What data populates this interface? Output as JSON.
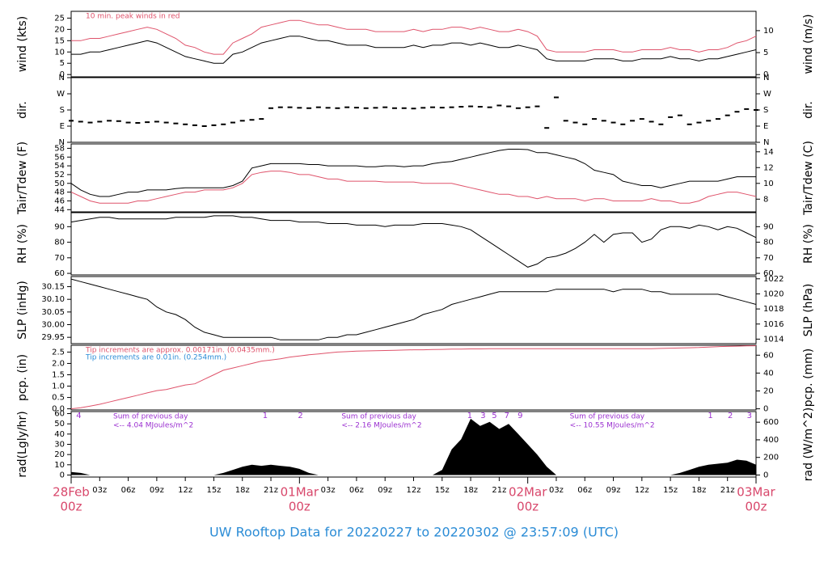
{
  "chart_data": [
    {
      "type": "line",
      "y_label": "wind (kts)",
      "y2_label": "wind (m/s)",
      "annotation": "10 min. peak winds in red",
      "ylim": [
        -1,
        28
      ],
      "yticks": [
        0,
        5,
        10,
        15,
        20,
        25
      ],
      "y2lim": [
        -0.51,
        14.4
      ],
      "y2ticks": [
        0,
        5,
        10
      ],
      "series": [
        {
          "color": "#000000",
          "values": [
            9,
            9,
            10,
            10,
            11,
            12,
            13,
            14,
            15,
            14,
            12,
            10,
            8,
            7,
            6,
            5,
            5,
            9,
            10,
            12,
            14,
            15,
            16,
            17,
            17,
            16,
            15,
            15,
            14,
            13,
            13,
            13,
            12,
            12,
            12,
            12,
            13,
            12,
            13,
            13,
            14,
            14,
            13,
            14,
            13,
            12,
            12,
            13,
            12,
            11,
            7,
            6,
            6,
            6,
            6,
            7,
            7,
            7,
            6,
            6,
            7,
            7,
            7,
            8,
            7,
            7,
            6,
            7,
            7,
            8,
            9,
            10,
            11
          ]
        },
        {
          "color": "#df536b",
          "values": [
            15,
            15,
            16,
            16,
            17,
            18,
            19,
            20,
            21,
            20,
            18,
            16,
            13,
            12,
            10,
            9,
            9,
            14,
            16,
            18,
            21,
            22,
            23,
            24,
            24,
            23,
            22,
            22,
            21,
            20,
            20,
            20,
            19,
            19,
            19,
            19,
            20,
            19,
            20,
            20,
            21,
            21,
            20,
            21,
            20,
            19,
            19,
            20,
            19,
            17,
            11,
            10,
            10,
            10,
            10,
            11,
            11,
            11,
            10,
            10,
            11,
            11,
            11,
            12,
            11,
            11,
            10,
            11,
            11,
            12,
            14,
            15,
            17
          ]
        }
      ]
    },
    {
      "type": "scatter",
      "y_label": "dir.",
      "y2_label": "dir.",
      "ylim": [
        0,
        360
      ],
      "yticks": [
        {
          "value": 0,
          "label": "N"
        },
        {
          "value": 90,
          "label": "E"
        },
        {
          "value": 180,
          "label": "S"
        },
        {
          "value": 270,
          "label": "W"
        },
        {
          "value": 360,
          "label": "N"
        }
      ],
      "y2lim": [
        0,
        360
      ],
      "y2ticks": [
        {
          "value": 0,
          "label": "N"
        },
        {
          "value": 90,
          "label": "E"
        },
        {
          "value": 180,
          "label": "S"
        },
        {
          "value": 270,
          "label": "W"
        },
        {
          "value": 360,
          "label": "N"
        }
      ],
      "series": [
        {
          "color": "#000000",
          "values": [
            120,
            115,
            110,
            115,
            120,
            118,
            110,
            108,
            112,
            115,
            110,
            105,
            100,
            95,
            90,
            95,
            100,
            110,
            120,
            125,
            130,
            190,
            195,
            195,
            192,
            190,
            195,
            192,
            190,
            195,
            193,
            190,
            192,
            195,
            190,
            190,
            188,
            192,
            195,
            193,
            195,
            198,
            200,
            198,
            195,
            205,
            200,
            190,
            195,
            200,
            80,
            250,
            120,
            110,
            100,
            130,
            120,
            110,
            100,
            120,
            130,
            115,
            100,
            140,
            150,
            100,
            110,
            120,
            130,
            150,
            170,
            185,
            180
          ]
        }
      ]
    },
    {
      "type": "line",
      "y_label": "Tair/Tdew (F)",
      "y2_label": "Tair/Tdew (C)",
      "ylim": [
        43.5,
        59
      ],
      "yticks": [
        44,
        46,
        48,
        50,
        52,
        54,
        56,
        58
      ],
      "y2lim": [
        6.39,
        15
      ],
      "y2ticks": [
        8,
        10,
        12,
        14
      ],
      "series": [
        {
          "color": "#000000",
          "values": [
            50,
            48.5,
            47.5,
            47,
            47,
            47.5,
            48,
            48,
            48.5,
            48.5,
            48.5,
            48.8,
            49,
            49,
            49,
            49,
            49,
            49.5,
            50.5,
            53.5,
            54,
            54.5,
            54.5,
            54.5,
            54.5,
            54.3,
            54.3,
            54,
            54,
            54,
            54,
            53.8,
            53.8,
            54,
            54,
            53.8,
            54,
            54,
            54.5,
            54.8,
            55,
            55.5,
            56,
            56.5,
            57,
            57.5,
            57.8,
            57.8,
            57.7,
            57,
            57,
            56.5,
            56,
            55.5,
            54.5,
            53,
            52.5,
            52,
            50.5,
            50,
            49.5,
            49.5,
            49,
            49.5,
            50,
            50.5,
            50.5,
            50.5,
            50.5,
            51,
            51.5,
            51.5,
            51.5
          ]
        },
        {
          "color": "#df536b",
          "values": [
            48,
            47,
            46,
            45.5,
            45.5,
            45.5,
            45.5,
            46,
            46,
            46.5,
            47,
            47.5,
            48,
            48,
            48.5,
            48.5,
            48.5,
            49,
            50,
            52,
            52.5,
            52.8,
            52.8,
            52.5,
            52,
            52,
            51.5,
            51,
            51,
            50.5,
            50.5,
            50.5,
            50.5,
            50.3,
            50.3,
            50.3,
            50.3,
            50,
            50,
            50,
            50,
            49.5,
            49,
            48.5,
            48,
            47.5,
            47.5,
            47,
            47,
            46.5,
            47,
            46.5,
            46.5,
            46.5,
            46,
            46.5,
            46.5,
            46,
            46,
            46,
            46,
            46.5,
            46,
            46,
            45.5,
            45.5,
            46,
            47,
            47.5,
            48,
            48,
            47.5,
            47
          ]
        }
      ]
    },
    {
      "type": "line",
      "y_label": "RH (%)",
      "y2_label": "RH (%)",
      "ylim": [
        59,
        99
      ],
      "yticks": [
        60,
        70,
        80,
        90
      ],
      "y2lim": [
        59,
        99
      ],
      "y2ticks": [
        60,
        70,
        80,
        90
      ],
      "series": [
        {
          "color": "#000000",
          "values": [
            93,
            94,
            95,
            96,
            96,
            95,
            95,
            95,
            95,
            95,
            95,
            96,
            96,
            96,
            96,
            97,
            97,
            97,
            96,
            96,
            95,
            94,
            94,
            94,
            93,
            93,
            93,
            92,
            92,
            92,
            91,
            91,
            91,
            90,
            91,
            91,
            91,
            92,
            92,
            92,
            91,
            90,
            88,
            84,
            80,
            76,
            72,
            68,
            64,
            66,
            70,
            71,
            73,
            76,
            80,
            85,
            80,
            85,
            86,
            86,
            80,
            82,
            88,
            90,
            90,
            89,
            91,
            90,
            88,
            90,
            89,
            86,
            83
          ]
        }
      ]
    },
    {
      "type": "line",
      "y_label": "SLP (inHg)",
      "y2_label": "SLP (hPa)",
      "ylim": [
        29.925,
        30.19
      ],
      "yticks": [
        29.95,
        {
          "value": 30,
          "label": "30.00"
        },
        30.05,
        {
          "value": 30.1,
          "label": "30.10"
        },
        30.15
      ],
      "y2lim": [
        1013.4,
        1022.3
      ],
      "y2ticks": [
        1014,
        1016,
        1018,
        1020,
        1022
      ],
      "series": [
        {
          "color": "#000000",
          "values": [
            30.18,
            30.17,
            30.16,
            30.15,
            30.14,
            30.13,
            30.12,
            30.11,
            30.1,
            30.07,
            30.05,
            30.04,
            30.02,
            29.99,
            29.97,
            29.96,
            29.95,
            29.95,
            29.95,
            29.95,
            29.95,
            29.95,
            29.94,
            29.94,
            29.94,
            29.94,
            29.94,
            29.95,
            29.95,
            29.96,
            29.96,
            29.97,
            29.98,
            29.99,
            30.0,
            30.01,
            30.02,
            30.04,
            30.05,
            30.06,
            30.08,
            30.09,
            30.1,
            30.11,
            30.12,
            30.13,
            30.13,
            30.13,
            30.13,
            30.13,
            30.13,
            30.14,
            30.14,
            30.14,
            30.14,
            30.14,
            30.14,
            30.13,
            30.14,
            30.14,
            30.14,
            30.13,
            30.13,
            30.12,
            30.12,
            30.12,
            30.12,
            30.12,
            30.12,
            30.11,
            30.1,
            30.09,
            30.08
          ]
        }
      ]
    },
    {
      "type": "line",
      "y_label": "pcp. (in)",
      "y2_label": "pcp. (mm)",
      "annotations": [
        {
          "text": "Tip increments are approx. 0.00171in. (0.0435mm.)",
          "color": "#df536b"
        },
        {
          "text": "Tip increments are 0.01in. (0.254mm.)",
          "color": "#2b8cd6"
        }
      ],
      "ylim": [
        -0.05,
        2.8
      ],
      "yticks": [
        {
          "value": 0,
          "label": "0.0"
        },
        0.5,
        {
          "value": 1,
          "label": "1.0"
        },
        1.5,
        {
          "value": 2,
          "label": "2.0"
        },
        2.5
      ],
      "y2lim": [
        -1.27,
        71.1
      ],
      "y2ticks": [
        0,
        20,
        40,
        60
      ],
      "series": [
        {
          "color": "#df536b",
          "values": [
            0,
            0.05,
            0.12,
            0.2,
            0.3,
            0.4,
            0.5,
            0.6,
            0.7,
            0.8,
            0.85,
            0.95,
            1.05,
            1.1,
            1.3,
            1.5,
            1.7,
            1.8,
            1.9,
            2.0,
            2.1,
            2.15,
            2.2,
            2.28,
            2.33,
            2.38,
            2.42,
            2.46,
            2.5,
            2.52,
            2.54,
            2.55,
            2.56,
            2.57,
            2.58,
            2.59,
            2.6,
            2.6,
            2.61,
            2.62,
            2.63,
            2.63,
            2.64,
            2.64,
            2.65,
            2.65,
            2.65,
            2.65,
            2.65,
            2.65,
            2.65,
            2.65,
            2.65,
            2.65,
            2.65,
            2.65,
            2.65,
            2.65,
            2.65,
            2.65,
            2.65,
            2.65,
            2.66,
            2.67,
            2.68,
            2.69,
            2.7,
            2.72,
            2.74,
            2.75,
            2.76,
            2.77,
            2.78
          ]
        }
      ]
    },
    {
      "type": "area",
      "y_label": "rad(Lgly/hr)",
      "y2_label": "rad (W/m^2)",
      "ylim": [
        -2,
        62
      ],
      "yticks": [
        0,
        10,
        20,
        30,
        40,
        50,
        60
      ],
      "y2lim": [
        -23.3,
        721
      ],
      "y2ticks": [
        0,
        200,
        400,
        600
      ],
      "notes": [
        {
          "line1": "Sum of previous day",
          "line2": "<-- 4.04 MJoules/m^2"
        },
        {
          "line1": "Sum of previous day",
          "line2": "<-- 2.16 MJoules/m^2"
        },
        {
          "line1": "Sum of previous day",
          "line2": "<-- 10.55 MJoules/m^2"
        }
      ],
      "hour_marks": [
        {
          "x": 0.8,
          "label": "4"
        },
        {
          "x": 20.4,
          "label": "1"
        },
        {
          "x": 24.1,
          "label": "2"
        },
        {
          "x": 41.9,
          "label": "1"
        },
        {
          "x": 43.3,
          "label": "3"
        },
        {
          "x": 44.5,
          "label": "5"
        },
        {
          "x": 45.8,
          "label": "7"
        },
        {
          "x": 47.2,
          "label": "9"
        },
        {
          "x": 67.2,
          "label": "1"
        },
        {
          "x": 69.3,
          "label": "2"
        },
        {
          "x": 71.3,
          "label": "3"
        }
      ],
      "series": [
        {
          "color": "#000000",
          "values": [
            3,
            2,
            0,
            0,
            0,
            0,
            0,
            0,
            0,
            0,
            0,
            0,
            0,
            0,
            0,
            0,
            2,
            5,
            8,
            10,
            9,
            10,
            9,
            8,
            6,
            2,
            0,
            0,
            0,
            0,
            0,
            0,
            0,
            0,
            0,
            0,
            0,
            0,
            0,
            5,
            25,
            35,
            55,
            48,
            52,
            45,
            50,
            40,
            30,
            20,
            8,
            0,
            0,
            0,
            0,
            0,
            0,
            0,
            0,
            0,
            0,
            0,
            0,
            0,
            2,
            5,
            8,
            10,
            11,
            12,
            15,
            14,
            10
          ]
        }
      ]
    }
  ],
  "x_axis": {
    "x": [
      0,
      1,
      2,
      3,
      4,
      5,
      6,
      7,
      8,
      9,
      10,
      11,
      12,
      13,
      14,
      15,
      16,
      17,
      18,
      19,
      20,
      21,
      22,
      23,
      24,
      25,
      26,
      27,
      28,
      29,
      30,
      31,
      32,
      33,
      34,
      35,
      36,
      37,
      38,
      39,
      40,
      41,
      42,
      43,
      44,
      45,
      46,
      47,
      48,
      49,
      50,
      51,
      52,
      53,
      54,
      55,
      56,
      57,
      58,
      59,
      60,
      61,
      62,
      63,
      64,
      65,
      66,
      67,
      68,
      69,
      70,
      71,
      72
    ],
    "xlim": [
      0,
      72
    ],
    "xticks": [
      {
        "value": 3,
        "label": "03z"
      },
      {
        "value": 6,
        "label": "06z"
      },
      {
        "value": 9,
        "label": "09z"
      },
      {
        "value": 12,
        "label": "12z"
      },
      {
        "value": 15,
        "label": "15z"
      },
      {
        "value": 18,
        "label": "18z"
      },
      {
        "value": 21,
        "label": "21z"
      },
      {
        "value": 27,
        "label": "03z"
      },
      {
        "value": 30,
        "label": "06z"
      },
      {
        "value": 33,
        "label": "09z"
      },
      {
        "value": 36,
        "label": "12z"
      },
      {
        "value": 39,
        "label": "15z"
      },
      {
        "value": 42,
        "label": "18z"
      },
      {
        "value": 45,
        "label": "21z"
      },
      {
        "value": 51,
        "label": "03z"
      },
      {
        "value": 54,
        "label": "06z"
      },
      {
        "value": 57,
        "label": "09z"
      },
      {
        "value": 60,
        "label": "12z"
      },
      {
        "value": 63,
        "label": "15z"
      },
      {
        "value": 66,
        "label": "18z"
      },
      {
        "value": 69,
        "label": "21z"
      }
    ],
    "day_ticks": [
      {
        "value": 0,
        "label": "28Feb",
        "hour": "00z"
      },
      {
        "value": 24,
        "label": "01Mar",
        "hour": "00z"
      },
      {
        "value": 48,
        "label": "02Mar",
        "hour": "00z"
      },
      {
        "value": 72,
        "label": "03Mar",
        "hour": "00z"
      }
    ]
  },
  "footer": "UW Rooftop Data for 20220227  to  20220302 @ 23:57:09  (UTC)"
}
